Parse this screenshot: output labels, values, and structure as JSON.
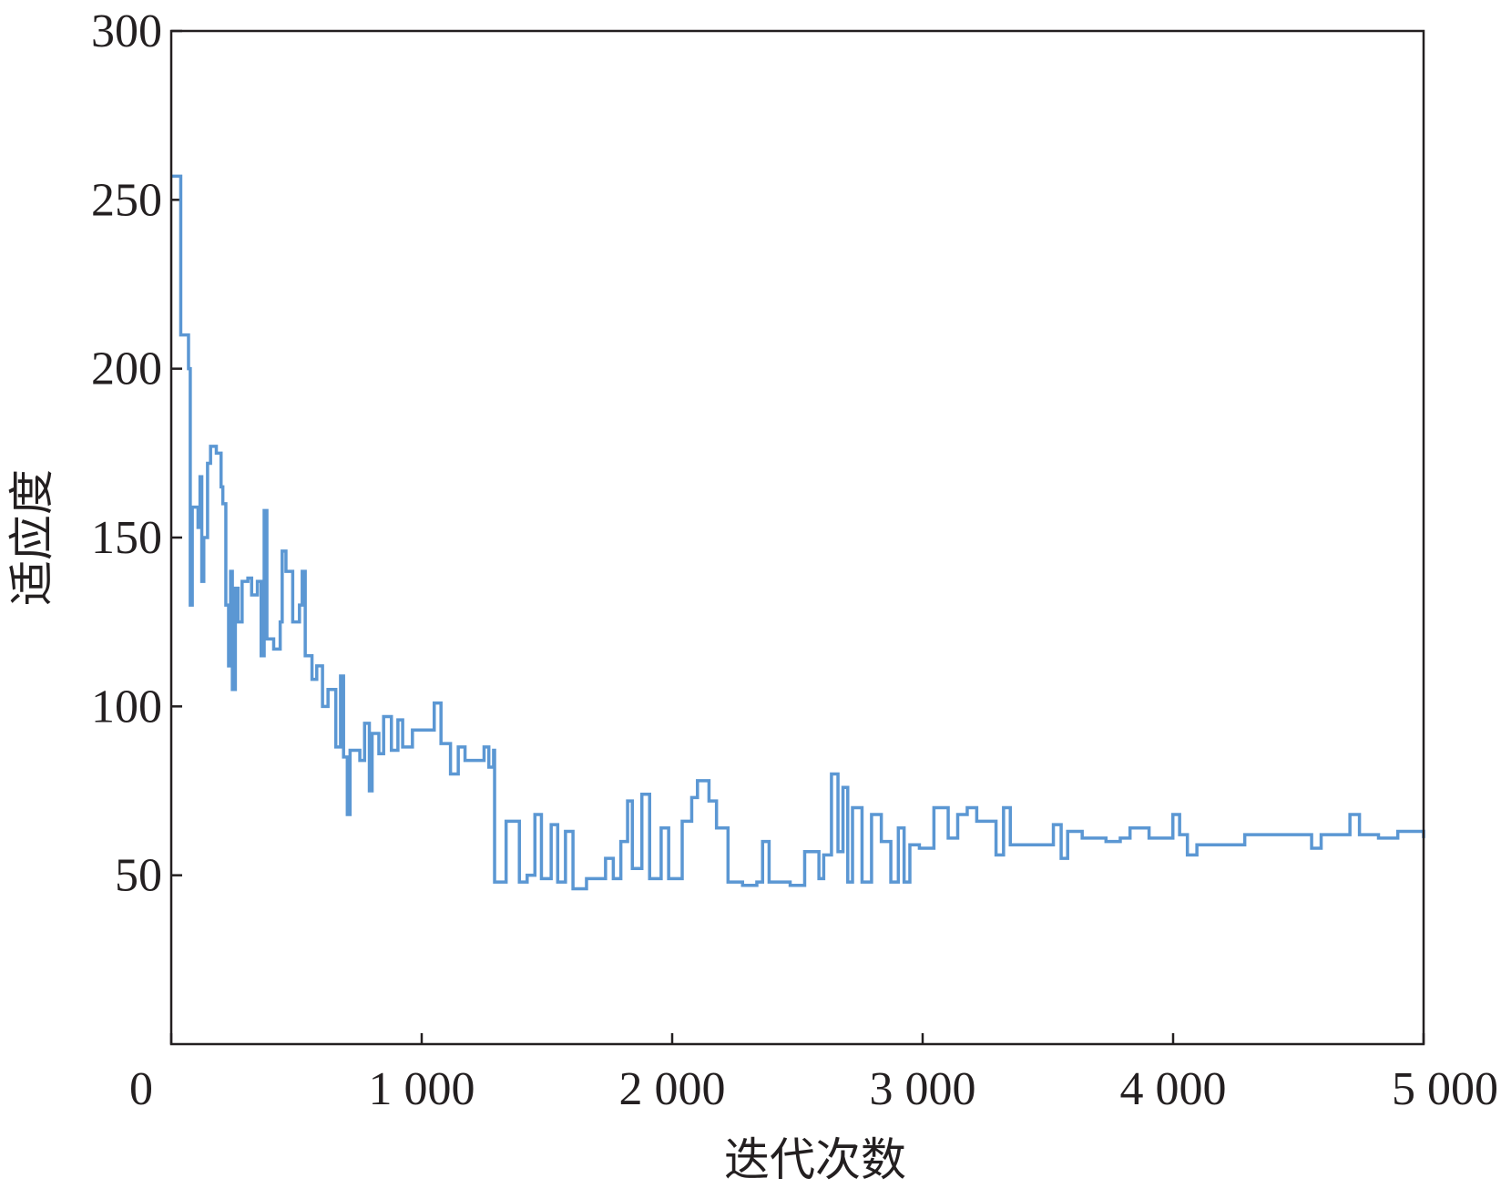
{
  "chart_data": {
    "type": "line",
    "drawstyle": "steps-post",
    "x_label": "迭代次数",
    "y_label": "适应度",
    "xlim": [
      0,
      5000
    ],
    "ylim": [
      0,
      300
    ],
    "xticks": [
      0,
      {
        "value": 1000,
        "label": "1 000"
      },
      {
        "value": 2000,
        "label": "2 000"
      },
      {
        "value": 3000,
        "label": "3 000"
      },
      {
        "value": 4000,
        "label": "4 000"
      },
      {
        "value": 5000,
        "label": "5 000"
      }
    ],
    "yticks": [
      50,
      100,
      150,
      200,
      250,
      300
    ],
    "grid": false,
    "series": [
      {
        "name": "适应度",
        "color": "#5b97d3",
        "x": [
          0,
          38,
          69,
          76,
          84,
          107,
          115,
          122,
          130,
          145,
          157,
          180,
          199,
          206,
          218,
          229,
          237,
          244,
          256,
          267,
          283,
          306,
          321,
          344,
          359,
          371,
          382,
          409,
          435,
          443,
          458,
          485,
          512,
          523,
          535,
          562,
          581,
          604,
          626,
          657,
          676,
          688,
          703,
          714,
          753,
          772,
          791,
          802,
          829,
          848,
          879,
          905,
          924,
          963,
          1050,
          1077,
          1115,
          1146,
          1173,
          1249,
          1268,
          1287,
          1291,
          1337,
          1390,
          1421,
          1452,
          1478,
          1517,
          1543,
          1574,
          1604,
          1658,
          1734,
          1765,
          1795,
          1822,
          1841,
          1879,
          1910,
          1956,
          1986,
          2040,
          2078,
          2101,
          2147,
          2177,
          2223,
          2281,
          2338,
          2361,
          2387,
          2471,
          2529,
          2586,
          2605,
          2636,
          2662,
          2682,
          2701,
          2720,
          2758,
          2796,
          2835,
          2873,
          2903,
          2926,
          2949,
          2987,
          3045,
          3102,
          3140,
          3178,
          3216,
          3293,
          3323,
          3350,
          3446,
          3522,
          3553,
          3579,
          3637,
          3713,
          3732,
          3789,
          3828,
          3904,
          3999,
          4026,
          4057,
          4095,
          4209,
          4286,
          4477,
          4553,
          4591,
          4706,
          4744,
          4820,
          4897,
          5000
        ],
        "values": [
          257,
          210,
          200,
          130,
          159,
          153,
          168,
          137,
          150,
          172,
          177,
          175,
          165,
          160,
          130,
          112,
          140,
          105,
          135,
          125,
          137,
          138,
          133,
          137,
          115,
          158,
          120,
          117,
          125,
          146,
          140,
          125,
          130,
          140,
          115,
          108,
          112,
          100,
          105,
          88,
          109,
          85,
          68,
          87,
          84,
          95,
          75,
          92,
          86,
          97,
          87,
          96,
          88,
          93,
          101,
          89,
          80,
          88,
          84,
          88,
          82,
          87,
          48,
          66,
          48,
          50,
          68,
          49,
          65,
          48,
          63,
          46,
          49,
          55,
          49,
          60,
          72,
          52,
          74,
          49,
          64,
          49,
          66,
          73,
          78,
          72,
          64,
          48,
          47,
          48,
          60,
          48,
          47,
          57,
          49,
          56,
          80,
          57,
          76,
          48,
          70,
          48,
          68,
          60,
          48,
          64,
          48,
          59,
          58,
          70,
          61,
          68,
          70,
          66,
          56,
          70,
          59,
          59,
          65,
          55,
          63,
          61,
          61,
          60,
          61,
          64,
          61,
          68,
          62,
          56,
          59,
          59,
          62,
          62,
          58,
          62,
          68,
          62,
          61,
          63,
          61
        ]
      }
    ]
  }
}
